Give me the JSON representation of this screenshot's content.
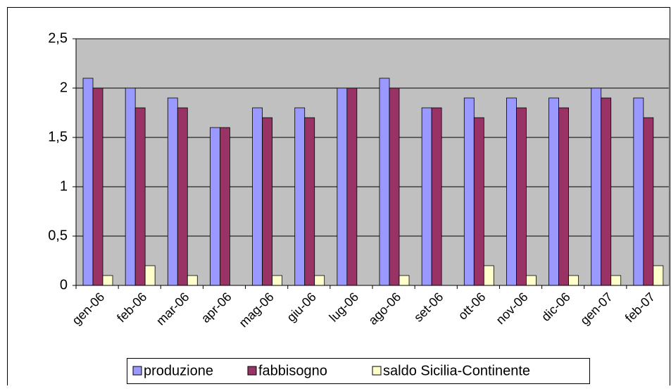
{
  "chart_data": {
    "type": "bar",
    "categories": [
      "gen-06",
      "feb-06",
      "mar-06",
      "apr-06",
      "mag-06",
      "giu-06",
      "lug-06",
      "ago-06",
      "set-06",
      "ott-06",
      "nov-06",
      "dic-06",
      "gen-07",
      "feb-07"
    ],
    "series": [
      {
        "name": "produzione",
        "color": "#9999ff",
        "values": [
          2.1,
          2.0,
          1.9,
          1.6,
          1.8,
          1.8,
          2.0,
          2.1,
          1.8,
          1.9,
          1.9,
          1.9,
          2.0,
          1.9
        ]
      },
      {
        "name": "fabbisogno",
        "color": "#993366",
        "values": [
          2.0,
          1.8,
          1.8,
          1.6,
          1.7,
          1.7,
          2.0,
          2.0,
          1.8,
          1.7,
          1.8,
          1.8,
          1.9,
          1.7
        ]
      },
      {
        "name": "saldo Sicilia-Continente",
        "color": "#ffffcc",
        "values": [
          0.1,
          0.2,
          0.1,
          0,
          0.1,
          0.1,
          0,
          0.1,
          0,
          0.2,
          0.1,
          0.1,
          0.1,
          0.2
        ]
      }
    ],
    "ylim": [
      0,
      2.5
    ],
    "yticks": [
      0,
      {
        "value": 0.5,
        "label": "0,5"
      },
      1,
      {
        "value": 1.5,
        "label": "1,5"
      },
      2,
      {
        "value": 2.5,
        "label": "2,5"
      }
    ],
    "grid": true,
    "legend": "bottom",
    "plot_background": "#c0c0c0"
  }
}
